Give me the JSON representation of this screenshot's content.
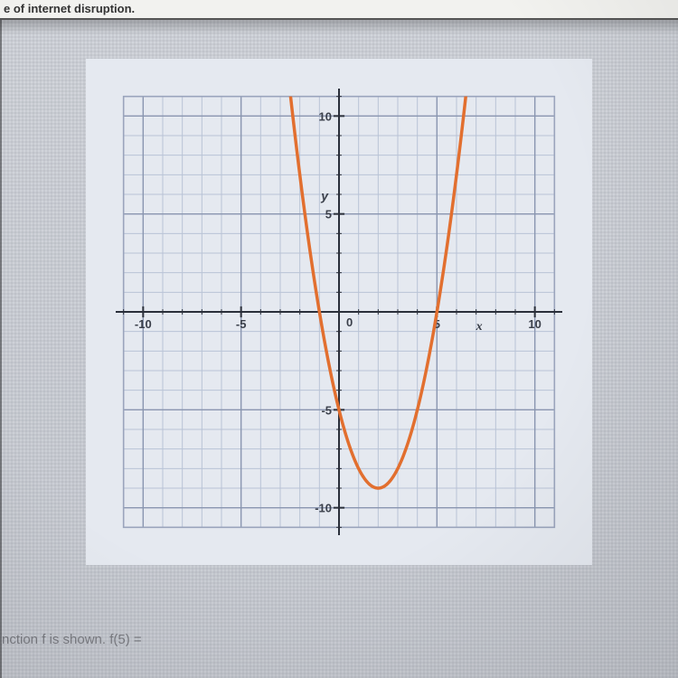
{
  "top_text": "e of internet disruption.",
  "bottom_text": "nction f is shown. f(5) =",
  "plot": {
    "type": "line",
    "xlim": [
      -12,
      12
    ],
    "ylim": [
      -12,
      12
    ],
    "xtick_major": [
      -10,
      -5,
      5,
      10
    ],
    "ytick_major": [
      -10,
      -5,
      5,
      10
    ],
    "xtick_labels": [
      "-10",
      "-5",
      "5",
      "10"
    ],
    "ytick_labels": [
      "-10",
      "-5",
      "5",
      "10"
    ],
    "origin_label": "0",
    "x_axis_symbol": "x",
    "y_axis_symbol": "y",
    "minor_step": 1,
    "background_color": "#e5e9f0",
    "grid_color": "#b9c3d6",
    "major_grid_color": "#8a96b0",
    "axis_color": "#2a2f3a",
    "border_color": "#9aa4bc",
    "label_color": "#3a3f4a",
    "label_fontsize": 13,
    "axis_symbol_fontsize": 14,
    "curve_color": "#e26f2f",
    "curve_width": 3.5,
    "tick_len": 0.28,
    "parabola": {
      "vertex_x": 2,
      "vertex_y": -9,
      "a": 1
    }
  }
}
